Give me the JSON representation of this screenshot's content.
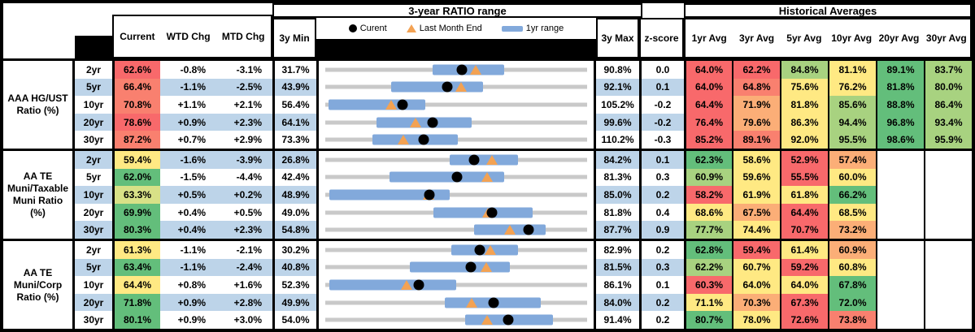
{
  "palette": {
    "red": "#F8696B",
    "salmon": "#F9806F",
    "orange": "#FBAE77",
    "yellow": "#FFE983",
    "yellowgreen": "#D8E187",
    "lightgreen": "#A8D280",
    "green": "#63BE7B",
    "stripe": "#BDD4E9",
    "bar_blue": "#82A9DB",
    "track_gray": "#C9C9C9",
    "triangle_orange": "#F3A253"
  },
  "headers": {
    "ratio_range_title": "3-year RATIO range",
    "historical_title": "Historical Averages",
    "current": "Current",
    "wtd": "WTD Chg",
    "mtd": "MTD Chg",
    "min3y": "3y Min",
    "max3y": "3y Max",
    "zscore": "z-score",
    "avg_cols": [
      "1yr Avg",
      "3yr Avg",
      "5yr Avg",
      "10yr Avg",
      "20yr Avg",
      "30yr Avg"
    ],
    "legend": {
      "current": "Curent",
      "last_month": "Last Month End",
      "range": "1yr range"
    }
  },
  "chart_data": {
    "type": "table",
    "note": "Each row renders a dot-and-range strip: x-axis spans min_3y..max_3y (%), blue bar = 1yr range, black dot = current, orange triangle = last_month_end",
    "groups": [
      {
        "label": "AAA HG/UST\nRatio (%)",
        "rows": [
          {
            "tenor": "2yr",
            "current": 62.6,
            "current_color": "red",
            "wtd": "-0.8%",
            "mtd": "-3.1%",
            "min_3y": 31.7,
            "max_3y": 90.8,
            "z": "0.0",
            "last_month_end": 65.7,
            "range_1yr": [
              56.0,
              72.0
            ],
            "avgs": [
              [
                "64.0%",
                "red"
              ],
              [
                "62.2%",
                "red"
              ],
              [
                "84.8%",
                "lightgreen"
              ],
              [
                "81.1%",
                "yellow"
              ],
              [
                "89.1%",
                "green"
              ],
              [
                "83.7%",
                "lightgreen"
              ]
            ]
          },
          {
            "tenor": "5yr",
            "current": 66.4,
            "current_color": "salmon",
            "wtd": "-1.1%",
            "mtd": "-2.5%",
            "min_3y": 43.9,
            "max_3y": 92.1,
            "z": "0.1",
            "last_month_end": 68.9,
            "range_1yr": [
              56.0,
              73.0
            ],
            "avgs": [
              [
                "64.0%",
                "red"
              ],
              [
                "64.8%",
                "salmon"
              ],
              [
                "75.6%",
                "yellow"
              ],
              [
                "76.2%",
                "yellow"
              ],
              [
                "81.8%",
                "green"
              ],
              [
                "80.0%",
                "lightgreen"
              ]
            ]
          },
          {
            "tenor": "10yr",
            "current": 70.8,
            "current_color": "salmon",
            "wtd": "+1.1%",
            "mtd": "+2.1%",
            "min_3y": 56.4,
            "max_3y": 105.2,
            "z": "-0.2",
            "last_month_end": 68.7,
            "range_1yr": [
              57.0,
              75.0
            ],
            "avgs": [
              [
                "64.4%",
                "red"
              ],
              [
                "71.9%",
                "orange"
              ],
              [
                "81.8%",
                "yellow"
              ],
              [
                "85.6%",
                "lightgreen"
              ],
              [
                "88.8%",
                "green"
              ],
              [
                "86.4%",
                "lightgreen"
              ]
            ]
          },
          {
            "tenor": "20yr",
            "current": 78.6,
            "current_color": "red",
            "wtd": "+0.9%",
            "mtd": "+2.3%",
            "min_3y": 64.1,
            "max_3y": 99.6,
            "z": "-0.2",
            "last_month_end": 76.3,
            "range_1yr": [
              71.0,
              84.0
            ],
            "avgs": [
              [
                "76.4%",
                "red"
              ],
              [
                "79.6%",
                "orange"
              ],
              [
                "86.3%",
                "yellow"
              ],
              [
                "94.4%",
                "lightgreen"
              ],
              [
                "96.8%",
                "green"
              ],
              [
                "93.4%",
                "lightgreen"
              ]
            ]
          },
          {
            "tenor": "30yr",
            "current": 87.2,
            "current_color": "salmon",
            "wtd": "+0.7%",
            "mtd": "+2.9%",
            "min_3y": 73.3,
            "max_3y": 110.2,
            "z": "-0.3",
            "last_month_end": 84.3,
            "range_1yr": [
              80.0,
              92.0
            ],
            "avgs": [
              [
                "85.2%",
                "red"
              ],
              [
                "89.1%",
                "salmon"
              ],
              [
                "92.0%",
                "yellow"
              ],
              [
                "95.5%",
                "lightgreen"
              ],
              [
                "98.6%",
                "green"
              ],
              [
                "95.9%",
                "lightgreen"
              ]
            ]
          }
        ]
      },
      {
        "label": "AA TE\nMuni/Taxable\nMuni Ratio\n(%)",
        "rows": [
          {
            "tenor": "2yr",
            "current": 59.4,
            "current_color": "yellow",
            "wtd": "-1.6%",
            "mtd": "-3.9%",
            "min_3y": 26.8,
            "max_3y": 84.2,
            "z": "0.1",
            "last_month_end": 63.3,
            "range_1yr": [
              54.0,
              69.0
            ],
            "avgs": [
              [
                "62.3%",
                "green"
              ],
              [
                "58.6%",
                "yellow"
              ],
              [
                "52.9%",
                "red"
              ],
              [
                "57.4%",
                "orange"
              ]
            ]
          },
          {
            "tenor": "5yr",
            "current": 62.0,
            "current_color": "green",
            "wtd": "-1.5%",
            "mtd": "-4.4%",
            "min_3y": 42.4,
            "max_3y": 81.3,
            "z": "0.3",
            "last_month_end": 66.4,
            "range_1yr": [
              52.0,
              69.0
            ],
            "avgs": [
              [
                "60.9%",
                "lightgreen"
              ],
              [
                "59.6%",
                "yellow"
              ],
              [
                "55.5%",
                "red"
              ],
              [
                "60.0%",
                "yellow"
              ]
            ]
          },
          {
            "tenor": "10yr",
            "current": 63.3,
            "current_color": "yellowgreen",
            "wtd": "+0.5%",
            "mtd": "+0.2%",
            "min_3y": 48.9,
            "max_3y": 85.0,
            "z": "0.2",
            "last_month_end": 63.1,
            "range_1yr": [
              49.5,
              66.0
            ],
            "avgs": [
              [
                "58.2%",
                "red"
              ],
              [
                "61.9%",
                "yellow"
              ],
              [
                "61.8%",
                "yellow"
              ],
              [
                "66.2%",
                "green"
              ]
            ]
          },
          {
            "tenor": "20yr",
            "current": 69.9,
            "current_color": "green",
            "wtd": "+0.4%",
            "mtd": "+0.5%",
            "min_3y": 49.0,
            "max_3y": 81.8,
            "z": "0.4",
            "last_month_end": 69.4,
            "range_1yr": [
              62.5,
              75.0
            ],
            "avgs": [
              [
                "68.6%",
                "yellow"
              ],
              [
                "67.5%",
                "orange"
              ],
              [
                "64.4%",
                "red"
              ],
              [
                "68.5%",
                "yellow"
              ]
            ]
          },
          {
            "tenor": "30yr",
            "current": 80.3,
            "current_color": "green",
            "wtd": "+0.4%",
            "mtd": "+2.3%",
            "min_3y": 54.8,
            "max_3y": 87.7,
            "z": "0.9",
            "last_month_end": 78.0,
            "range_1yr": [
              73.5,
              82.5
            ],
            "avgs": [
              [
                "77.7%",
                "lightgreen"
              ],
              [
                "74.4%",
                "yellow"
              ],
              [
                "70.7%",
                "red"
              ],
              [
                "73.2%",
                "orange"
              ]
            ]
          }
        ]
      },
      {
        "label": "AA TE\nMuni/Corp\nRatio (%)",
        "rows": [
          {
            "tenor": "2yr",
            "current": 61.3,
            "current_color": "yellow",
            "wtd": "-1.1%",
            "mtd": "-2.1%",
            "min_3y": 30.2,
            "max_3y": 82.9,
            "z": "0.2",
            "last_month_end": 63.4,
            "range_1yr": [
              55.5,
              69.0
            ],
            "avgs": [
              [
                "62.8%",
                "green"
              ],
              [
                "59.4%",
                "red"
              ],
              [
                "61.4%",
                "yellow"
              ],
              [
                "60.9%",
                "orange"
              ]
            ]
          },
          {
            "tenor": "5yr",
            "current": 63.4,
            "current_color": "green",
            "wtd": "-1.1%",
            "mtd": "-2.4%",
            "min_3y": 40.8,
            "max_3y": 81.5,
            "z": "0.3",
            "last_month_end": 65.8,
            "range_1yr": [
              54.0,
              69.5
            ],
            "avgs": [
              [
                "62.2%",
                "lightgreen"
              ],
              [
                "60.7%",
                "yellow"
              ],
              [
                "59.2%",
                "red"
              ],
              [
                "60.8%",
                "yellow"
              ]
            ]
          },
          {
            "tenor": "10yr",
            "current": 64.4,
            "current_color": "yellow",
            "wtd": "+0.8%",
            "mtd": "+1.6%",
            "min_3y": 52.3,
            "max_3y": 86.1,
            "z": "0.1",
            "last_month_end": 62.8,
            "range_1yr": [
              52.8,
              69.2
            ],
            "avgs": [
              [
                "60.3%",
                "red"
              ],
              [
                "64.0%",
                "yellow"
              ],
              [
                "64.0%",
                "yellow"
              ],
              [
                "67.8%",
                "green"
              ]
            ]
          },
          {
            "tenor": "20yr",
            "current": 71.8,
            "current_color": "green",
            "wtd": "+0.9%",
            "mtd": "+2.8%",
            "min_3y": 49.9,
            "max_3y": 84.0,
            "z": "0.2",
            "last_month_end": 69.0,
            "range_1yr": [
              65.5,
              78.0
            ],
            "avgs": [
              [
                "71.1%",
                "yellow"
              ],
              [
                "70.3%",
                "orange"
              ],
              [
                "67.3%",
                "red"
              ],
              [
                "72.0%",
                "green"
              ]
            ]
          },
          {
            "tenor": "30yr",
            "current": 80.1,
            "current_color": "green",
            "wtd": "+0.9%",
            "mtd": "+3.0%",
            "min_3y": 54.0,
            "max_3y": 91.4,
            "z": "0.2",
            "last_month_end": 77.1,
            "range_1yr": [
              74.0,
              86.5
            ],
            "avgs": [
              [
                "80.7%",
                "green"
              ],
              [
                "78.0%",
                "yellow"
              ],
              [
                "72.6%",
                "red"
              ],
              [
                "73.8%",
                "salmon"
              ]
            ]
          }
        ]
      }
    ]
  }
}
